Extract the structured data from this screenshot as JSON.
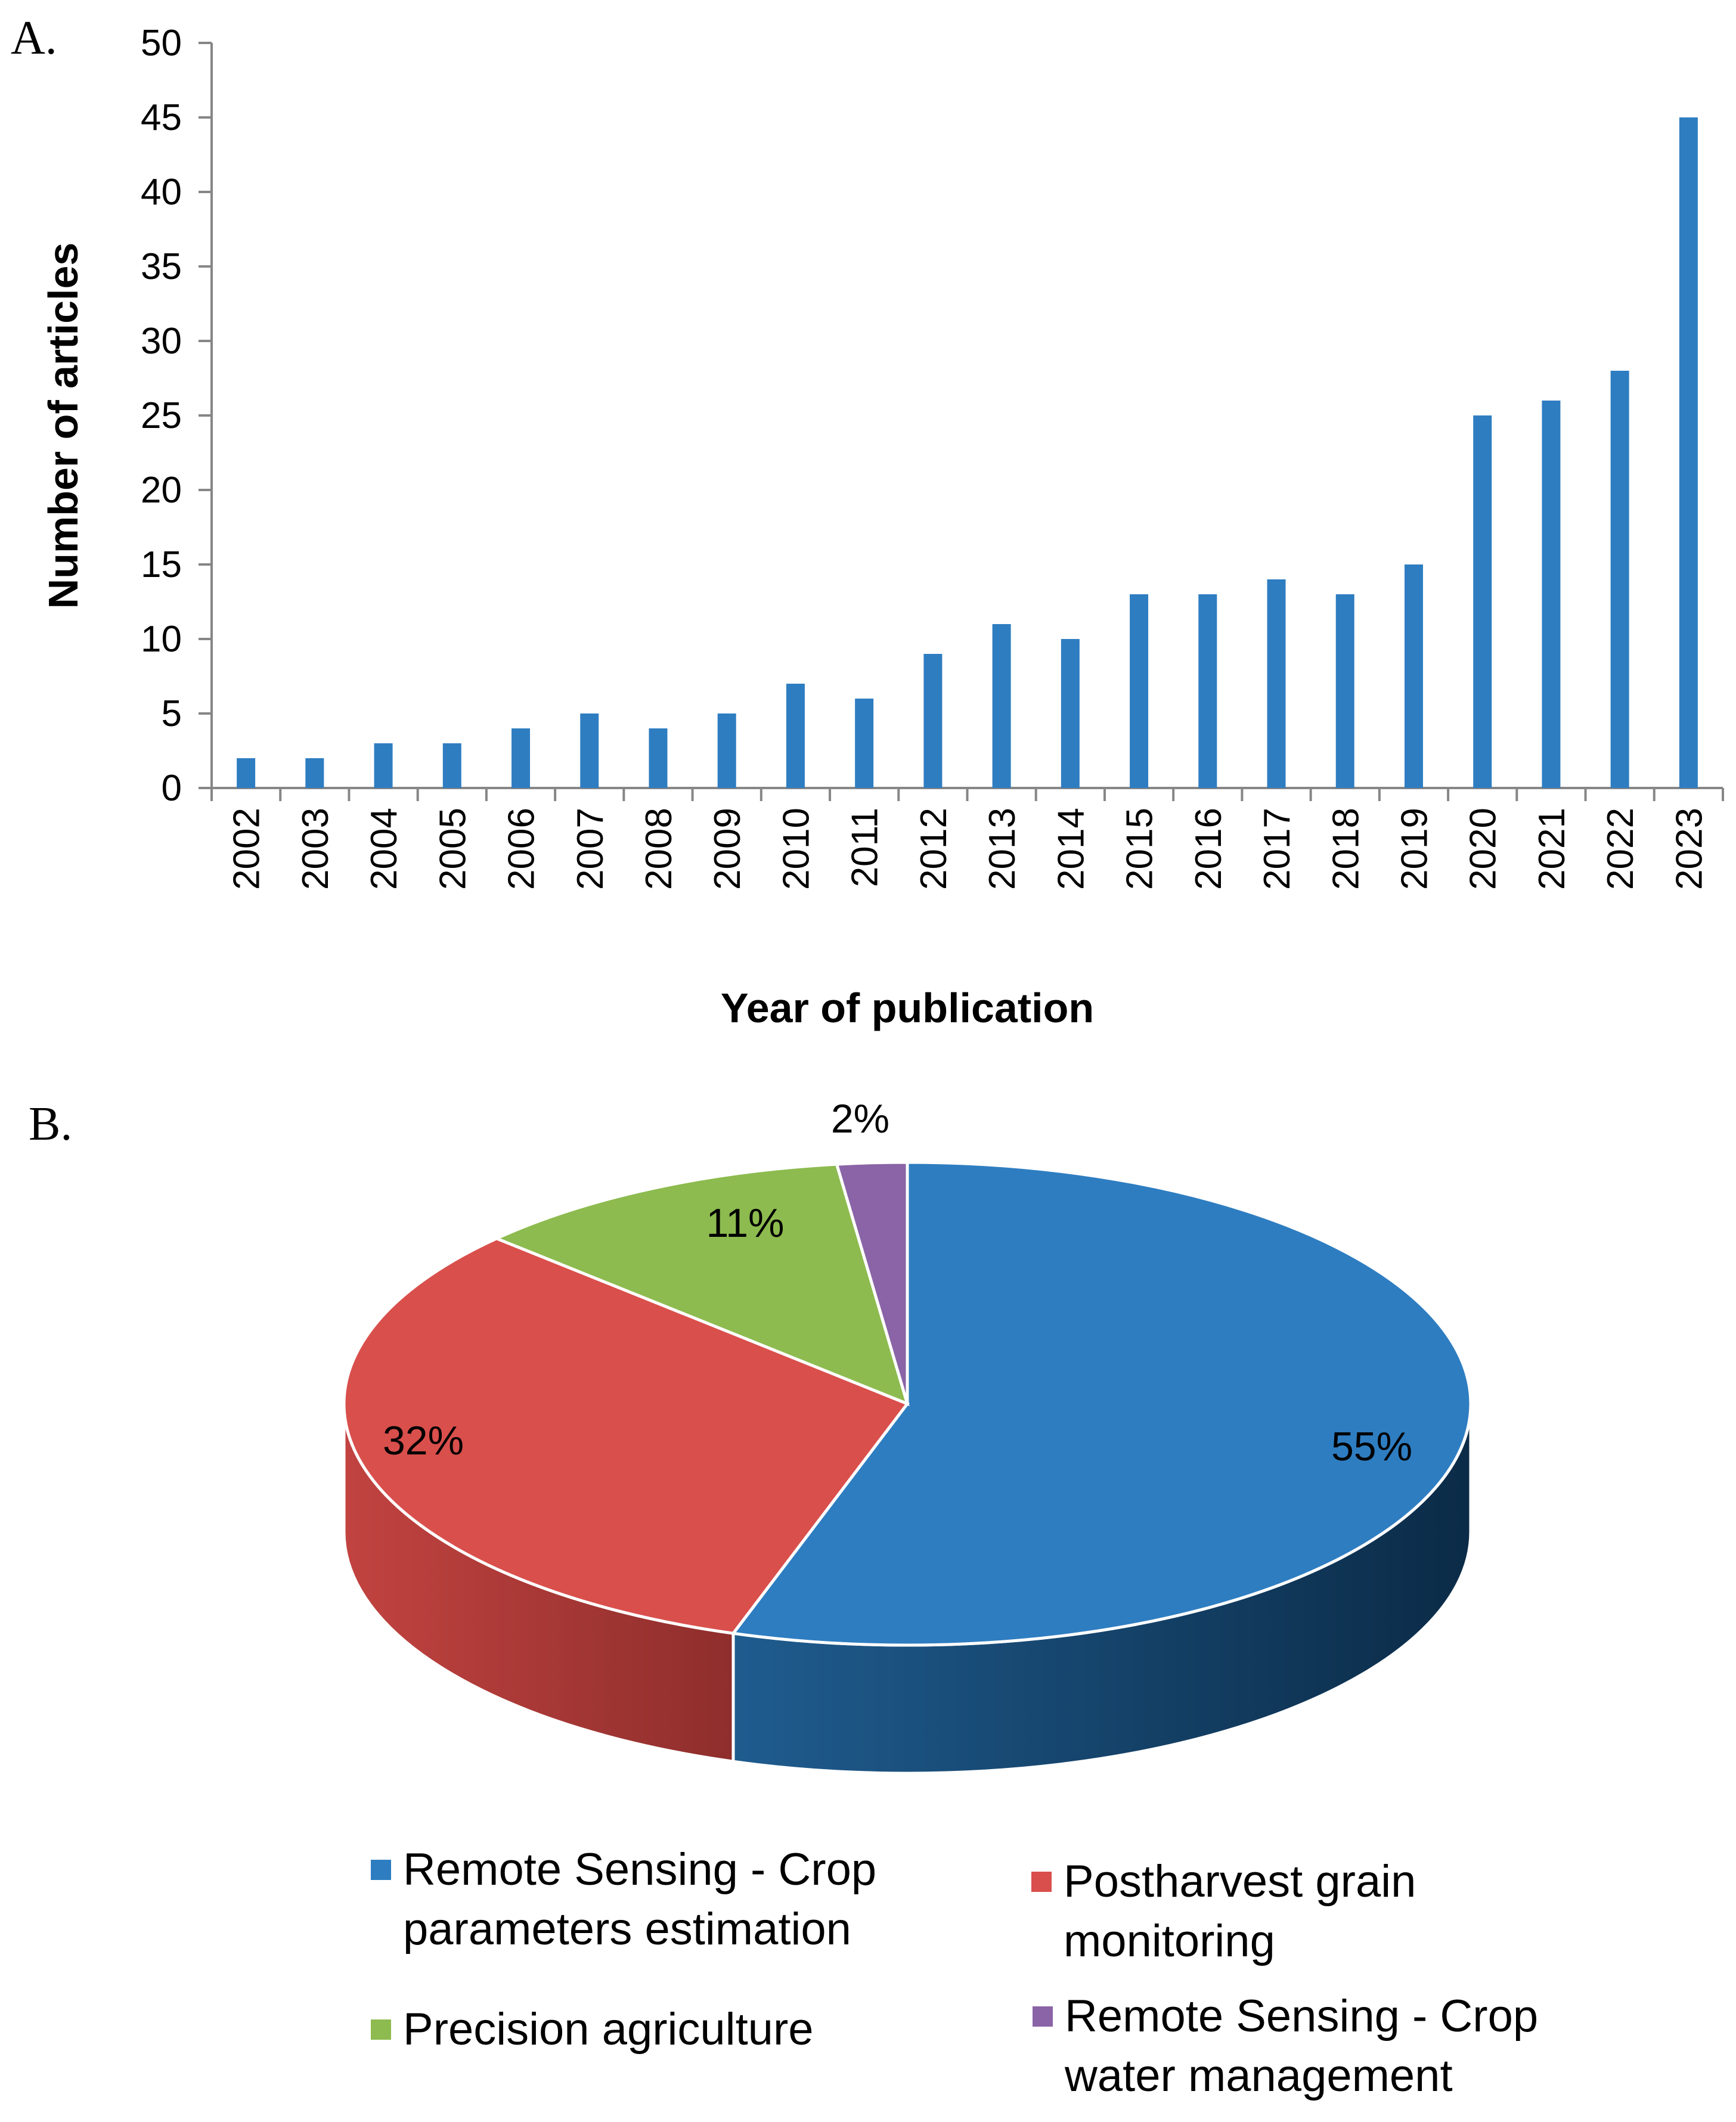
{
  "chart_data": [
    {
      "panel": "A.",
      "type": "bar",
      "xlabel": "Year of publication",
      "ylabel": "Number of articles",
      "ylim": [
        0,
        50
      ],
      "yticks": [
        "0",
        "5",
        "10",
        "15",
        "20",
        "25",
        "30",
        "35",
        "40",
        "45",
        "50"
      ],
      "categories": [
        "2002",
        "2003",
        "2004",
        "2005",
        "2006",
        "2007",
        "2008",
        "2009",
        "2010",
        "2011",
        "2012",
        "2013",
        "2014",
        "2015",
        "2016",
        "2017",
        "2018",
        "2019",
        "2020",
        "2021",
        "2022",
        "2023"
      ],
      "values": [
        2,
        2,
        3,
        3,
        4,
        5,
        4,
        5,
        7,
        6,
        9,
        11,
        10,
        13,
        13,
        14,
        13,
        15,
        25,
        26,
        28,
        45
      ],
      "color": "#2E7DC1"
    },
    {
      "panel": "B.",
      "type": "pie",
      "style": "3d",
      "slices": [
        {
          "label": "Remote Sensing - Crop parameters estimation",
          "legend_lines": [
            "Remote Sensing - Crop",
            "parameters estimation"
          ],
          "value": 55,
          "display": "55%",
          "color": "#2E7DC1",
          "side_light": "#1F5C8F",
          "side_dark": "#0B2B47"
        },
        {
          "label": "Postharvest grain monitoring",
          "legend_lines": [
            "Postharvest grain",
            "monitoring"
          ],
          "value": 32,
          "display": "32%",
          "color": "#D94F4C",
          "side_light": "#C24340",
          "side_dark": "#8E2E2C"
        },
        {
          "label": "Precision agriculture",
          "legend_lines": [
            "Precision agriculture"
          ],
          "value": 11,
          "display": "11%",
          "color": "#8DBB4F",
          "side_light": "#6F9A3A",
          "side_dark": "#4E6E27"
        },
        {
          "label": "Remote Sensing - Crop water management",
          "legend_lines": [
            "Remote Sensing - Crop",
            "water management"
          ],
          "value": 2,
          "display": "2%",
          "color": "#8A64A6",
          "side_light": "#6C4C86",
          "side_dark": "#4C3363"
        }
      ]
    }
  ]
}
